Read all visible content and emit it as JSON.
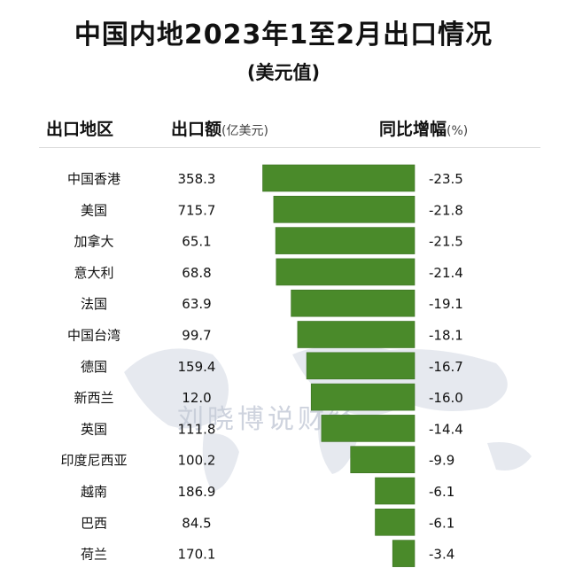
{
  "header": {
    "title": "中国内地2023年1至2月出口情况",
    "subtitle": "(美元值)",
    "col_region": "出口地区",
    "col_export": "出口额",
    "col_export_unit": "(亿美元)",
    "col_yoy": "同比增幅",
    "col_yoy_unit": "(%)"
  },
  "watermark": "刘晓博说财经",
  "chart_data": {
    "type": "bar",
    "orientation": "horizontal",
    "categories": [
      "中国香港",
      "美国",
      "加拿大",
      "意大利",
      "法国",
      "中国台湾",
      "德国",
      "新西兰",
      "英国",
      "印度尼西亚",
      "越南",
      "巴西",
      "荷兰"
    ],
    "series": [
      {
        "values": [
          -23.5,
          -21.8,
          -21.5,
          -21.4,
          -19.1,
          -18.1,
          -16.7,
          -16.0,
          -14.4,
          -9.9,
          -6.1,
          -6.1,
          -3.4
        ]
      }
    ],
    "value_labels": [
      "-23.5",
      "-21.8",
      "-21.5",
      "-21.4",
      "-19.1",
      "-18.1",
      "-16.7",
      "-16.0",
      "-14.4",
      "-9.9",
      "-6.1",
      "-6.1",
      "-3.4"
    ],
    "export_values": [
      "358.3",
      "715.7",
      "65.1",
      "68.8",
      "63.9",
      "99.7",
      "159.4",
      "12.0",
      "111.8",
      "100.2",
      "186.9",
      "84.5",
      "170.1"
    ],
    "xlim": [
      -25,
      0
    ],
    "grid": false,
    "colors": {
      "bar": "#4a8a2a",
      "bar_edge": "#3a7020"
    }
  }
}
